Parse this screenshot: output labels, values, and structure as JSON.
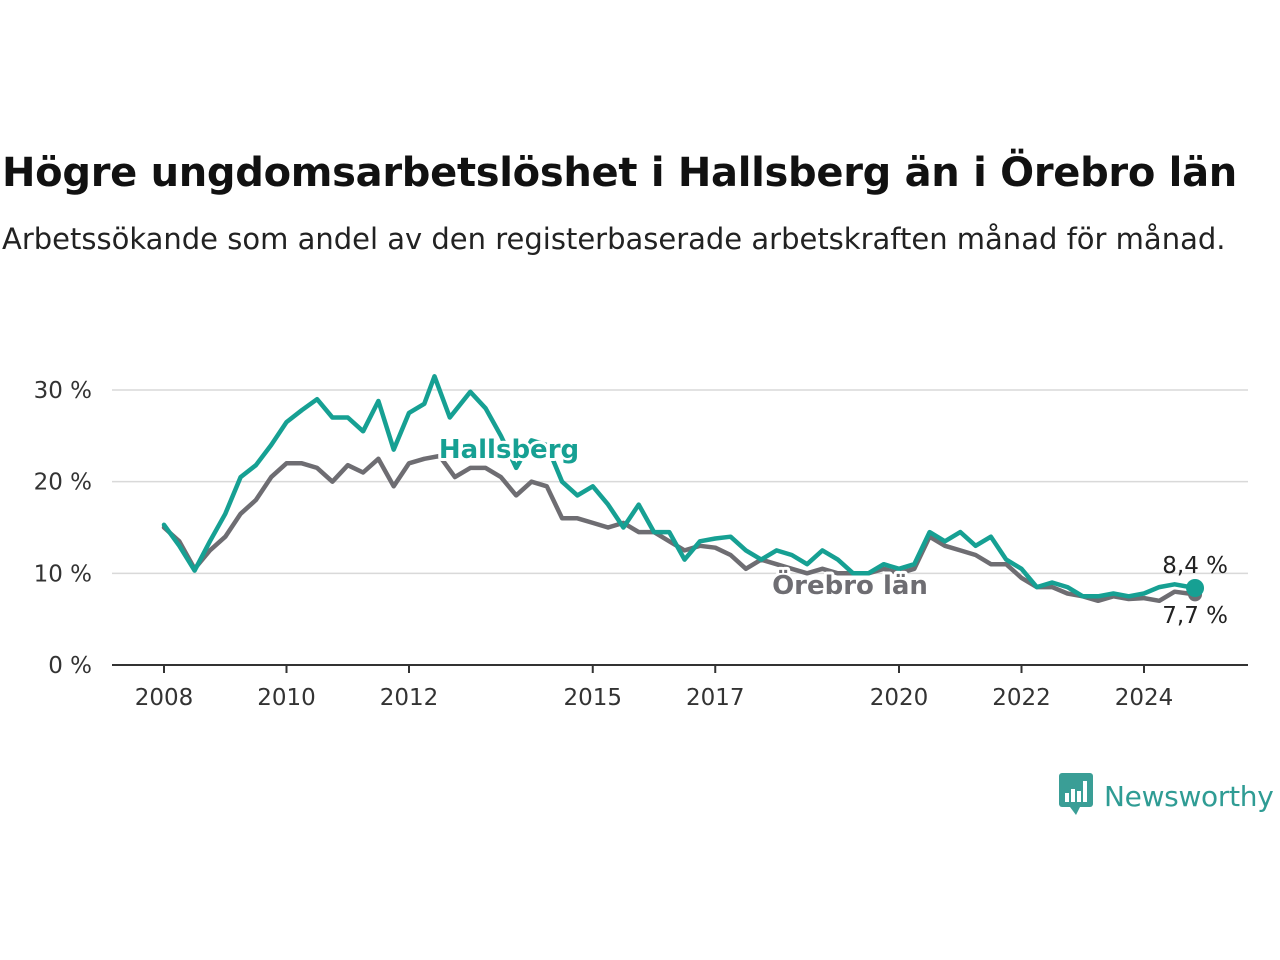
{
  "title": "Högre ungdomsarbetslöshet i Hallsberg än i Örebro län",
  "subtitle": "Arbetssökande som andel av den registerbaserade arbetskraften månad för månad.",
  "brand": {
    "name": "Newsworthy",
    "icon": "newsworthy-logo-icon",
    "color": "#3a9e96"
  },
  "chart_data": {
    "type": "line",
    "title": "Högre ungdomsarbetslöshet i Hallsberg än i Örebro län",
    "subtitle": "Arbetssökande som andel av den registerbaserade arbetskraften månad för månad.",
    "xlabel": "",
    "ylabel": "",
    "x_ticks": [
      "2008",
      "2010",
      "2012",
      "2015",
      "2017",
      "2020",
      "2022",
      "2024"
    ],
    "y_ticks": [
      "0 %",
      "10 %",
      "20 %",
      "30 %"
    ],
    "ylim": [
      0,
      30
    ],
    "xlim": [
      "2008-01",
      "2024-11"
    ],
    "grid": true,
    "legend": "inline labels",
    "end_labels": {
      "Hallsberg": "8,4 %",
      "Örebro län": "7,7 %"
    },
    "series": [
      {
        "name": "Hallsberg",
        "color": "#16a093",
        "points": [
          [
            "2008-01",
            15.3
          ],
          [
            "2008-04",
            13.0
          ],
          [
            "2008-07",
            10.3
          ],
          [
            "2008-10",
            13.5
          ],
          [
            "2009-01",
            16.5
          ],
          [
            "2009-04",
            20.5
          ],
          [
            "2009-07",
            21.8
          ],
          [
            "2009-10",
            24.0
          ],
          [
            "2010-01",
            26.5
          ],
          [
            "2010-04",
            27.8
          ],
          [
            "2010-07",
            29.0
          ],
          [
            "2010-10",
            27.0
          ],
          [
            "2011-01",
            27.0
          ],
          [
            "2011-04",
            25.5
          ],
          [
            "2011-07",
            28.8
          ],
          [
            "2011-10",
            23.5
          ],
          [
            "2012-01",
            27.5
          ],
          [
            "2012-04",
            28.5
          ],
          [
            "2012-06",
            31.5
          ],
          [
            "2012-09",
            27.0
          ],
          [
            "2013-01",
            29.8
          ],
          [
            "2013-04",
            28.0
          ],
          [
            "2013-07",
            25.0
          ],
          [
            "2013-10",
            21.5
          ],
          [
            "2014-01",
            24.5
          ],
          [
            "2014-04",
            24.0
          ],
          [
            "2014-07",
            20.0
          ],
          [
            "2014-10",
            18.5
          ],
          [
            "2015-01",
            19.5
          ],
          [
            "2015-04",
            17.5
          ],
          [
            "2015-07",
            15.0
          ],
          [
            "2015-10",
            17.5
          ],
          [
            "2016-01",
            14.5
          ],
          [
            "2016-04",
            14.5
          ],
          [
            "2016-07",
            11.5
          ],
          [
            "2016-10",
            13.5
          ],
          [
            "2017-01",
            13.8
          ],
          [
            "2017-04",
            14.0
          ],
          [
            "2017-07",
            12.5
          ],
          [
            "2017-10",
            11.5
          ],
          [
            "2018-01",
            12.5
          ],
          [
            "2018-04",
            12.0
          ],
          [
            "2018-07",
            11.0
          ],
          [
            "2018-10",
            12.5
          ],
          [
            "2019-01",
            11.5
          ],
          [
            "2019-04",
            10.0
          ],
          [
            "2019-07",
            10.0
          ],
          [
            "2019-10",
            11.0
          ],
          [
            "2020-01",
            10.5
          ],
          [
            "2020-04",
            11.0
          ],
          [
            "2020-07",
            14.5
          ],
          [
            "2020-10",
            13.5
          ],
          [
            "2021-01",
            14.5
          ],
          [
            "2021-04",
            13.0
          ],
          [
            "2021-07",
            14.0
          ],
          [
            "2021-10",
            11.5
          ],
          [
            "2022-01",
            10.5
          ],
          [
            "2022-04",
            8.5
          ],
          [
            "2022-07",
            9.0
          ],
          [
            "2022-10",
            8.5
          ],
          [
            "2023-01",
            7.5
          ],
          [
            "2023-04",
            7.5
          ],
          [
            "2023-07",
            7.8
          ],
          [
            "2023-10",
            7.5
          ],
          [
            "2024-01",
            7.8
          ],
          [
            "2024-04",
            8.5
          ],
          [
            "2024-07",
            8.8
          ],
          [
            "2024-11",
            8.4
          ]
        ]
      },
      {
        "name": "Örebro län",
        "color": "#6e6d72",
        "points": [
          [
            "2008-01",
            15.0
          ],
          [
            "2008-04",
            13.5
          ],
          [
            "2008-07",
            10.5
          ],
          [
            "2008-10",
            12.5
          ],
          [
            "2009-01",
            14.0
          ],
          [
            "2009-04",
            16.5
          ],
          [
            "2009-07",
            18.0
          ],
          [
            "2009-10",
            20.5
          ],
          [
            "2010-01",
            22.0
          ],
          [
            "2010-04",
            22.0
          ],
          [
            "2010-07",
            21.5
          ],
          [
            "2010-10",
            20.0
          ],
          [
            "2011-01",
            21.8
          ],
          [
            "2011-04",
            21.0
          ],
          [
            "2011-07",
            22.5
          ],
          [
            "2011-10",
            19.5
          ],
          [
            "2012-01",
            22.0
          ],
          [
            "2012-04",
            22.5
          ],
          [
            "2012-07",
            22.8
          ],
          [
            "2012-10",
            20.5
          ],
          [
            "2013-01",
            21.5
          ],
          [
            "2013-04",
            21.5
          ],
          [
            "2013-07",
            20.5
          ],
          [
            "2013-10",
            18.5
          ],
          [
            "2014-01",
            20.0
          ],
          [
            "2014-04",
            19.5
          ],
          [
            "2014-07",
            16.0
          ],
          [
            "2014-10",
            16.0
          ],
          [
            "2015-01",
            15.5
          ],
          [
            "2015-04",
            15.0
          ],
          [
            "2015-07",
            15.5
          ],
          [
            "2015-10",
            14.5
          ],
          [
            "2016-01",
            14.5
          ],
          [
            "2016-04",
            13.5
          ],
          [
            "2016-07",
            12.5
          ],
          [
            "2016-10",
            13.0
          ],
          [
            "2017-01",
            12.8
          ],
          [
            "2017-04",
            12.0
          ],
          [
            "2017-07",
            10.5
          ],
          [
            "2017-10",
            11.5
          ],
          [
            "2018-01",
            11.0
          ],
          [
            "2018-04",
            10.5
          ],
          [
            "2018-07",
            10.0
          ],
          [
            "2018-10",
            10.5
          ],
          [
            "2019-01",
            10.0
          ],
          [
            "2019-04",
            10.0
          ],
          [
            "2019-07",
            10.0
          ],
          [
            "2019-10",
            10.5
          ],
          [
            "2020-01",
            10.0
          ],
          [
            "2020-04",
            10.5
          ],
          [
            "2020-07",
            14.0
          ],
          [
            "2020-10",
            13.0
          ],
          [
            "2021-01",
            12.5
          ],
          [
            "2021-04",
            12.0
          ],
          [
            "2021-07",
            11.0
          ],
          [
            "2021-10",
            11.0
          ],
          [
            "2022-01",
            9.5
          ],
          [
            "2022-04",
            8.5
          ],
          [
            "2022-07",
            8.5
          ],
          [
            "2022-10",
            7.8
          ],
          [
            "2023-01",
            7.5
          ],
          [
            "2023-04",
            7.0
          ],
          [
            "2023-07",
            7.5
          ],
          [
            "2023-10",
            7.2
          ],
          [
            "2024-01",
            7.3
          ],
          [
            "2024-04",
            7.0
          ],
          [
            "2024-07",
            8.0
          ],
          [
            "2024-11",
            7.7
          ]
        ]
      }
    ]
  }
}
